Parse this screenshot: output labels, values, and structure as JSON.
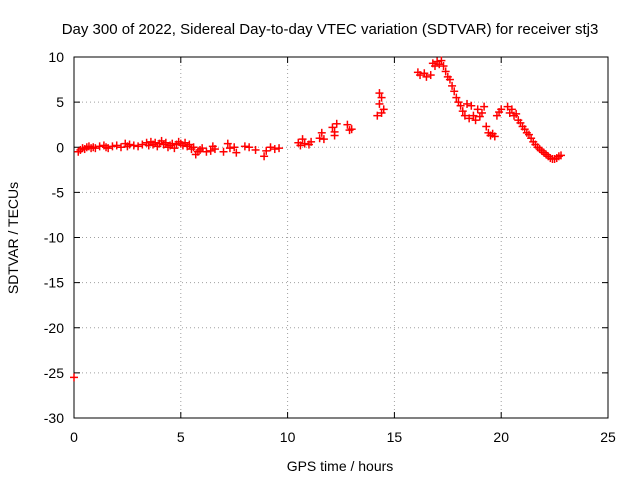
{
  "chart_data": {
    "type": "scatter",
    "title": "Day 300 of 2022, Sidereal Day-to-day VTEC variation (SDTVAR) for receiver stj3",
    "xlabel": "GPS time / hours",
    "ylabel": "SDTVAR / TECUs",
    "xlim": [
      0,
      25
    ],
    "ylim": [
      -30,
      10
    ],
    "xticks": [
      0,
      5,
      10,
      15,
      20,
      25
    ],
    "yticks": [
      -30,
      -25,
      -20,
      -15,
      -10,
      -5,
      0,
      5,
      10
    ],
    "grid": true,
    "marker": "+",
    "series": [
      {
        "name": "SDTVAR",
        "color": "#ff0000",
        "points": [
          [
            0.2,
            -0.5
          ],
          [
            0.3,
            -0.3
          ],
          [
            0.4,
            -0.1
          ],
          [
            0.5,
            -0.2
          ],
          [
            0.6,
            0.0
          ],
          [
            0.7,
            0.1
          ],
          [
            0.8,
            -0.1
          ],
          [
            0.9,
            0.0
          ],
          [
            1.0,
            -0.1
          ],
          [
            1.2,
            0.1
          ],
          [
            1.4,
            0.2
          ],
          [
            1.5,
            0.0
          ],
          [
            1.6,
            -0.1
          ],
          [
            1.8,
            0.1
          ],
          [
            2.0,
            0.2
          ],
          [
            2.2,
            0.0
          ],
          [
            2.4,
            0.4
          ],
          [
            2.5,
            0.1
          ],
          [
            2.6,
            0.3
          ],
          [
            2.8,
            0.2
          ],
          [
            3.0,
            0.1
          ],
          [
            3.2,
            0.3
          ],
          [
            3.4,
            0.5
          ],
          [
            3.5,
            0.2
          ],
          [
            3.6,
            0.6
          ],
          [
            3.7,
            0.3
          ],
          [
            3.8,
            0.5
          ],
          [
            3.9,
            0.1
          ],
          [
            4.0,
            0.4
          ],
          [
            4.1,
            0.7
          ],
          [
            4.2,
            0.3
          ],
          [
            4.3,
            0.5
          ],
          [
            4.4,
            0.0
          ],
          [
            4.5,
            0.2
          ],
          [
            4.6,
            0.4
          ],
          [
            4.7,
            -0.1
          ],
          [
            4.8,
            0.3
          ],
          [
            4.9,
            0.6
          ],
          [
            5.0,
            0.4
          ],
          [
            5.1,
            0.2
          ],
          [
            5.2,
            0.5
          ],
          [
            5.3,
            0.1
          ],
          [
            5.4,
            0.3
          ],
          [
            5.5,
            -0.2
          ],
          [
            5.6,
            0.0
          ],
          [
            5.7,
            -0.8
          ],
          [
            5.8,
            -0.5
          ],
          [
            5.9,
            -0.3
          ],
          [
            6.0,
            -0.1
          ],
          [
            6.2,
            -0.5
          ],
          [
            6.4,
            -0.4
          ],
          [
            6.5,
            0.1
          ],
          [
            6.6,
            -0.2
          ],
          [
            7.0,
            -0.5
          ],
          [
            7.2,
            0.4
          ],
          [
            7.3,
            -0.1
          ],
          [
            7.5,
            0.0
          ],
          [
            7.6,
            -0.6
          ],
          [
            8.0,
            0.1
          ],
          [
            8.2,
            0.0
          ],
          [
            8.5,
            -0.3
          ],
          [
            8.9,
            -1.0
          ],
          [
            9.0,
            -0.4
          ],
          [
            9.2,
            0.0
          ],
          [
            9.4,
            -0.2
          ],
          [
            9.6,
            -0.1
          ],
          [
            10.5,
            0.5
          ],
          [
            10.6,
            0.2
          ],
          [
            10.7,
            0.9
          ],
          [
            10.8,
            0.4
          ],
          [
            11.0,
            0.3
          ],
          [
            11.1,
            0.6
          ],
          [
            11.5,
            1.0
          ],
          [
            11.6,
            1.6
          ],
          [
            11.7,
            0.9
          ],
          [
            12.1,
            2.2
          ],
          [
            12.2,
            1.7
          ],
          [
            12.3,
            2.6
          ],
          [
            12.2,
            1.3
          ],
          [
            12.8,
            2.5
          ],
          [
            12.9,
            1.9
          ],
          [
            13.0,
            2.0
          ],
          [
            14.2,
            3.5
          ],
          [
            14.3,
            4.8
          ],
          [
            14.4,
            5.5
          ],
          [
            14.3,
            6.0
          ],
          [
            14.5,
            4.2
          ],
          [
            14.4,
            3.8
          ],
          [
            16.1,
            8.3
          ],
          [
            16.2,
            8.0
          ],
          [
            16.4,
            8.2
          ],
          [
            16.5,
            7.8
          ],
          [
            16.7,
            8.0
          ],
          [
            16.8,
            9.3
          ],
          [
            16.9,
            9.0
          ],
          [
            17.0,
            9.5
          ],
          [
            17.1,
            9.2
          ],
          [
            17.2,
            9.6
          ],
          [
            17.3,
            9.0
          ],
          [
            17.4,
            8.4
          ],
          [
            17.5,
            7.8
          ],
          [
            17.6,
            7.5
          ],
          [
            17.7,
            6.8
          ],
          [
            17.8,
            6.2
          ],
          [
            17.9,
            5.5
          ],
          [
            18.0,
            5.0
          ],
          [
            18.1,
            4.6
          ],
          [
            18.2,
            4.0
          ],
          [
            18.3,
            3.5
          ],
          [
            18.4,
            4.8
          ],
          [
            18.5,
            3.2
          ],
          [
            18.6,
            4.6
          ],
          [
            18.7,
            3.5
          ],
          [
            18.8,
            3.0
          ],
          [
            18.9,
            4.2
          ],
          [
            19.0,
            3.4
          ],
          [
            19.1,
            3.8
          ],
          [
            19.2,
            4.5
          ],
          [
            19.3,
            2.3
          ],
          [
            19.4,
            1.6
          ],
          [
            19.5,
            1.3
          ],
          [
            19.6,
            1.5
          ],
          [
            19.7,
            1.2
          ],
          [
            19.8,
            3.5
          ],
          [
            19.9,
            3.9
          ],
          [
            20.0,
            4.2
          ],
          [
            20.3,
            4.5
          ],
          [
            20.4,
            3.8
          ],
          [
            20.5,
            4.2
          ],
          [
            20.6,
            3.5
          ],
          [
            20.7,
            3.7
          ],
          [
            20.8,
            3.0
          ],
          [
            20.9,
            2.7
          ],
          [
            21.0,
            2.3
          ],
          [
            21.1,
            2.0
          ],
          [
            21.2,
            1.6
          ],
          [
            21.3,
            1.4
          ],
          [
            21.4,
            1.0
          ],
          [
            21.5,
            0.6
          ],
          [
            21.6,
            0.3
          ],
          [
            21.7,
            0.0
          ],
          [
            21.8,
            -0.2
          ],
          [
            21.9,
            -0.4
          ],
          [
            22.0,
            -0.6
          ],
          [
            22.1,
            -0.8
          ],
          [
            22.2,
            -1.0
          ],
          [
            22.3,
            -1.2
          ],
          [
            22.4,
            -1.3
          ],
          [
            22.5,
            -1.3
          ],
          [
            22.6,
            -1.2
          ],
          [
            22.7,
            -1.0
          ],
          [
            22.8,
            -0.9
          ],
          [
            0.0,
            -25.5
          ]
        ]
      }
    ]
  }
}
